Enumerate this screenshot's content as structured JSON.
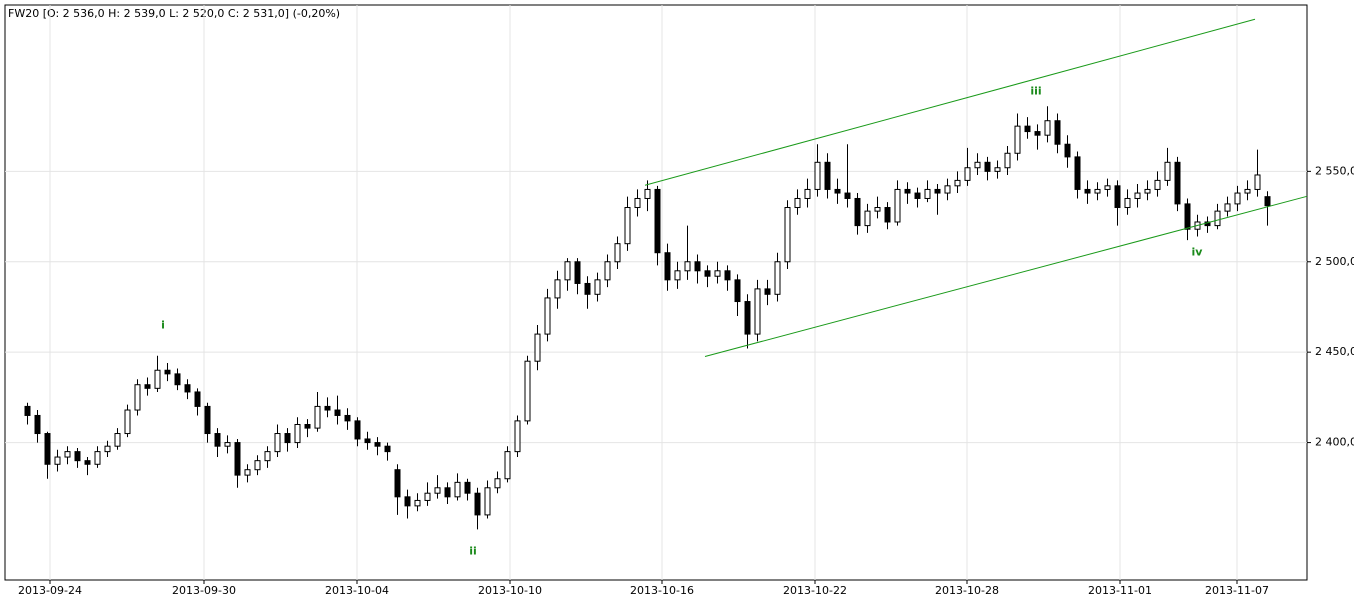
{
  "chart_data": {
    "type": "candlestick",
    "title": "FW20 [O: 2 536,0  H: 2 539,0  L: 2 520,0  C: 2 531,0] (-0,20%)",
    "up_color": "#ffffff",
    "down_color": "#000000",
    "wick_color": "#000000",
    "grid": true,
    "ylim": [
      2324,
      2642
    ],
    "yticks": [
      {
        "value": 2400,
        "label": "2 400,0"
      },
      {
        "value": 2450,
        "label": "2 450,0"
      },
      {
        "value": 2500,
        "label": "2 500,0"
      },
      {
        "value": 2550,
        "label": "2 550,0"
      }
    ],
    "xlim": [
      -2.2,
      128
    ],
    "xticks": [
      {
        "value": 2.3,
        "label": "2013-09-24"
      },
      {
        "value": 17.7,
        "label": "2013-09-30"
      },
      {
        "value": 33,
        "label": "2013-10-04"
      },
      {
        "value": 48.3,
        "label": "2013-10-10"
      },
      {
        "value": 63.5,
        "label": "2013-10-16"
      },
      {
        "value": 78.8,
        "label": "2013-10-22"
      },
      {
        "value": 94,
        "label": "2013-10-28"
      },
      {
        "value": 109.3,
        "label": "2013-11-01"
      },
      {
        "value": 121,
        "label": "2013-11-07"
      }
    ],
    "ohlc": [
      [
        2420,
        2422,
        2410,
        2415
      ],
      [
        2415,
        2418,
        2400,
        2405
      ],
      [
        2405,
        2406,
        2380,
        2388
      ],
      [
        2388,
        2396,
        2384,
        2392
      ],
      [
        2392,
        2398,
        2388,
        2395
      ],
      [
        2395,
        2397,
        2386,
        2390
      ],
      [
        2390,
        2392,
        2382,
        2388
      ],
      [
        2388,
        2398,
        2386,
        2395
      ],
      [
        2395,
        2401,
        2392,
        2398
      ],
      [
        2398,
        2408,
        2396,
        2405
      ],
      [
        2405,
        2421,
        2403,
        2418
      ],
      [
        2418,
        2435,
        2415,
        2432
      ],
      [
        2432,
        2436,
        2426,
        2430
      ],
      [
        2430,
        2448,
        2428,
        2440
      ],
      [
        2440,
        2444,
        2434,
        2438
      ],
      [
        2438,
        2441,
        2429,
        2432
      ],
      [
        2432,
        2435,
        2424,
        2428
      ],
      [
        2428,
        2430,
        2415,
        2420
      ],
      [
        2420,
        2422,
        2400,
        2405
      ],
      [
        2405,
        2408,
        2392,
        2398
      ],
      [
        2398,
        2404,
        2394,
        2400
      ],
      [
        2400,
        2402,
        2375,
        2382
      ],
      [
        2382,
        2388,
        2378,
        2385
      ],
      [
        2385,
        2393,
        2382,
        2390
      ],
      [
        2390,
        2398,
        2386,
        2395
      ],
      [
        2395,
        2410,
        2392,
        2405
      ],
      [
        2405,
        2408,
        2395,
        2400
      ],
      [
        2400,
        2414,
        2397,
        2410
      ],
      [
        2410,
        2413,
        2403,
        2408
      ],
      [
        2408,
        2428,
        2406,
        2420
      ],
      [
        2420,
        2425,
        2414,
        2418
      ],
      [
        2418,
        2426,
        2410,
        2415
      ],
      [
        2415,
        2419,
        2407,
        2412
      ],
      [
        2412,
        2414,
        2398,
        2402
      ],
      [
        2402,
        2406,
        2396,
        2400
      ],
      [
        2400,
        2403,
        2393,
        2398
      ],
      [
        2398,
        2400,
        2390,
        2395
      ],
      [
        2385,
        2388,
        2360,
        2370
      ],
      [
        2370,
        2374,
        2358,
        2365
      ],
      [
        2365,
        2372,
        2362,
        2368
      ],
      [
        2368,
        2378,
        2365,
        2372
      ],
      [
        2372,
        2382,
        2369,
        2375
      ],
      [
        2375,
        2378,
        2366,
        2370
      ],
      [
        2370,
        2383,
        2368,
        2378
      ],
      [
        2378,
        2380,
        2368,
        2372
      ],
      [
        2372,
        2375,
        2352,
        2360
      ],
      [
        2360,
        2379,
        2358,
        2375
      ],
      [
        2375,
        2384,
        2372,
        2380
      ],
      [
        2380,
        2398,
        2378,
        2395
      ],
      [
        2395,
        2415,
        2392,
        2412
      ],
      [
        2412,
        2448,
        2410,
        2445
      ],
      [
        2445,
        2465,
        2440,
        2460
      ],
      [
        2460,
        2485,
        2456,
        2480
      ],
      [
        2480,
        2495,
        2474,
        2490
      ],
      [
        2490,
        2502,
        2484,
        2500
      ],
      [
        2500,
        2502,
        2482,
        2488
      ],
      [
        2488,
        2492,
        2474,
        2482
      ],
      [
        2482,
        2494,
        2478,
        2490
      ],
      [
        2490,
        2504,
        2486,
        2500
      ],
      [
        2500,
        2514,
        2496,
        2510
      ],
      [
        2510,
        2536,
        2506,
        2530
      ],
      [
        2530,
        2540,
        2525,
        2535
      ],
      [
        2535,
        2545,
        2528,
        2540
      ],
      [
        2540,
        2542,
        2498,
        2505
      ],
      [
        2505,
        2510,
        2484,
        2490
      ],
      [
        2490,
        2500,
        2485,
        2495
      ],
      [
        2495,
        2520,
        2490,
        2500
      ],
      [
        2500,
        2504,
        2488,
        2495
      ],
      [
        2495,
        2498,
        2486,
        2492
      ],
      [
        2492,
        2500,
        2488,
        2495
      ],
      [
        2495,
        2498,
        2484,
        2490
      ],
      [
        2490,
        2493,
        2470,
        2478
      ],
      [
        2478,
        2482,
        2452,
        2460
      ],
      [
        2460,
        2490,
        2456,
        2485
      ],
      [
        2485,
        2490,
        2476,
        2482
      ],
      [
        2482,
        2505,
        2478,
        2500
      ],
      [
        2500,
        2534,
        2496,
        2530
      ],
      [
        2530,
        2540,
        2526,
        2535
      ],
      [
        2535,
        2546,
        2530,
        2540
      ],
      [
        2540,
        2565,
        2536,
        2555
      ],
      [
        2555,
        2560,
        2535,
        2540
      ],
      [
        2540,
        2546,
        2532,
        2538
      ],
      [
        2538,
        2565,
        2530,
        2535
      ],
      [
        2535,
        2538,
        2515,
        2520
      ],
      [
        2520,
        2532,
        2516,
        2528
      ],
      [
        2528,
        2536,
        2524,
        2530
      ],
      [
        2530,
        2533,
        2518,
        2522
      ],
      [
        2522,
        2545,
        2520,
        2540
      ],
      [
        2540,
        2544,
        2532,
        2538
      ],
      [
        2538,
        2541,
        2530,
        2535
      ],
      [
        2535,
        2545,
        2533,
        2540
      ],
      [
        2540,
        2543,
        2526,
        2538
      ],
      [
        2538,
        2546,
        2534,
        2542
      ],
      [
        2542,
        2550,
        2538,
        2545
      ],
      [
        2545,
        2563,
        2542,
        2552
      ],
      [
        2552,
        2560,
        2548,
        2555
      ],
      [
        2555,
        2558,
        2545,
        2550
      ],
      [
        2550,
        2556,
        2546,
        2552
      ],
      [
        2552,
        2564,
        2548,
        2560
      ],
      [
        2560,
        2582,
        2556,
        2575
      ],
      [
        2575,
        2580,
        2568,
        2572
      ],
      [
        2572,
        2576,
        2562,
        2570
      ],
      [
        2570,
        2586,
        2566,
        2578
      ],
      [
        2578,
        2582,
        2560,
        2565
      ],
      [
        2565,
        2570,
        2552,
        2558
      ],
      [
        2558,
        2561,
        2535,
        2540
      ],
      [
        2540,
        2545,
        2532,
        2538
      ],
      [
        2538,
        2544,
        2534,
        2540
      ],
      [
        2540,
        2546,
        2536,
        2542
      ],
      [
        2542,
        2545,
        2520,
        2530
      ],
      [
        2530,
        2540,
        2526,
        2535
      ],
      [
        2535,
        2543,
        2530,
        2538
      ],
      [
        2538,
        2545,
        2534,
        2540
      ],
      [
        2540,
        2550,
        2536,
        2545
      ],
      [
        2545,
        2563,
        2542,
        2555
      ],
      [
        2555,
        2558,
        2528,
        2532
      ],
      [
        2532,
        2535,
        2512,
        2518
      ],
      [
        2518,
        2526,
        2514,
        2522
      ],
      [
        2522,
        2525,
        2516,
        2520
      ],
      [
        2520,
        2532,
        2518,
        2528
      ],
      [
        2528,
        2536,
        2525,
        2532
      ],
      [
        2532,
        2542,
        2528,
        2538
      ],
      [
        2538,
        2545,
        2534,
        2540
      ],
      [
        2540,
        2562,
        2536,
        2548
      ],
      [
        2536,
        2539,
        2520,
        2531
      ]
    ],
    "trendlines": [
      {
        "color": "#1a9a1a",
        "points": [
          [
            61.8,
            2542.3
          ],
          [
            122.8,
            2634.1
          ]
        ]
      },
      {
        "color": "#1a9a1a",
        "points": [
          [
            67.8,
            2447.6
          ],
          [
            128,
            2536.2
          ]
        ]
      }
    ],
    "annotations": [
      {
        "text": "i",
        "x": 13.6,
        "y": 2464.8,
        "color": "#1a8a1a"
      },
      {
        "text": "ii",
        "x": 44.6,
        "y": 2339.7,
        "color": "#1a8a1a"
      },
      {
        "text": "iii",
        "x": 100.9,
        "y": 2594.3,
        "color": "#1a8a1a"
      },
      {
        "text": "iv",
        "x": 117,
        "y": 2505.2,
        "color": "#1a8a1a"
      }
    ]
  }
}
